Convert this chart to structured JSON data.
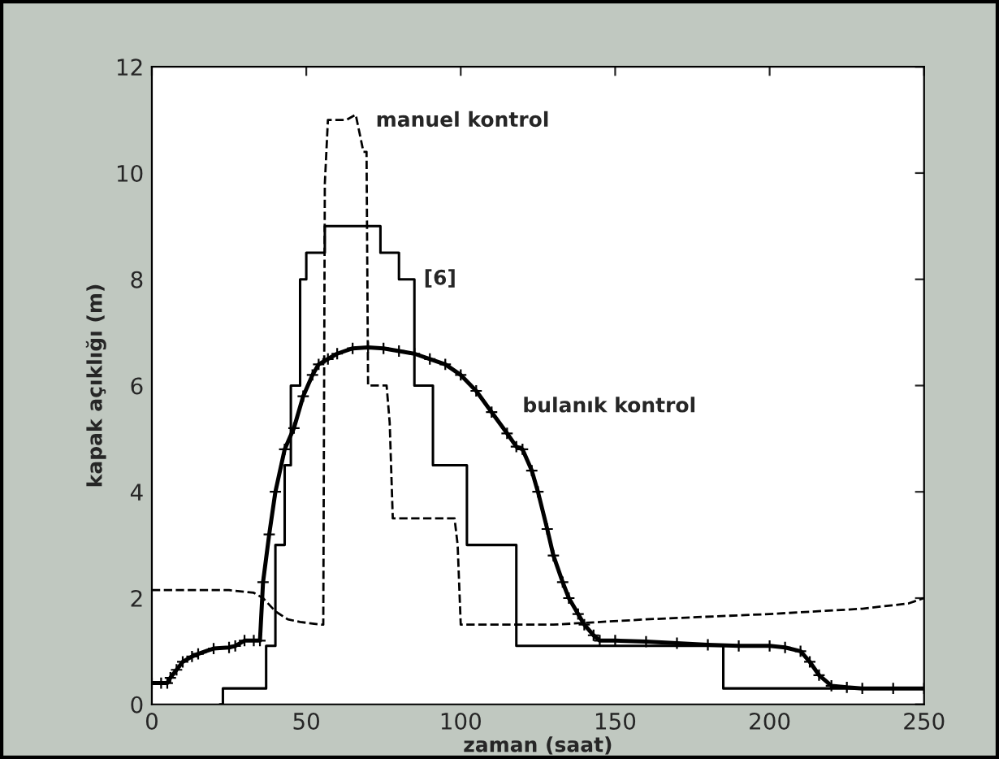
{
  "chart_data": {
    "type": "line",
    "xlabel": "zaman (saat)",
    "ylabel": "kapak açıklığı (m)",
    "xlim": [
      0,
      250
    ],
    "ylim": [
      0,
      12
    ],
    "xticks": [
      0,
      50,
      100,
      150,
      200,
      250
    ],
    "yticks": [
      0,
      2,
      4,
      6,
      8,
      10,
      12
    ],
    "grid": false,
    "series": [
      {
        "type": "step",
        "color": "#000000",
        "line_style": "solid",
        "marker": "none",
        "x": [
          22,
          23,
          37,
          40,
          43,
          45,
          48,
          50,
          56,
          74,
          80,
          85,
          91,
          102,
          118,
          185,
          250
        ],
        "values": [
          0,
          0.3,
          1.1,
          3,
          4.5,
          6,
          8,
          8.5,
          9,
          8.5,
          8,
          6,
          4.5,
          3,
          1.1,
          0.3,
          0.3
        ]
      },
      {
        "color": "#000000",
        "line_style": "dashed",
        "marker": "none",
        "x": [
          0,
          25,
          33,
          36,
          40,
          44,
          48,
          55,
          55.5,
          56,
          57,
          63,
          66,
          68.5,
          69.5,
          70,
          76,
          77,
          78,
          98,
          99,
          100,
          130,
          160,
          200,
          230,
          245,
          250
        ],
        "values": [
          2.15,
          2.15,
          2.1,
          2.0,
          1.75,
          1.6,
          1.55,
          1.5,
          1.5,
          9.8,
          11,
          11,
          11.1,
          10.4,
          10.4,
          6,
          6,
          5.3,
          3.5,
          3.5,
          3,
          1.5,
          1.5,
          1.6,
          1.7,
          1.8,
          1.9,
          2.0
        ]
      },
      {
        "color": "#000000",
        "line_style": "solid",
        "marker": "cross",
        "x": [
          0,
          3,
          5,
          6,
          8,
          10,
          13,
          15,
          20,
          25,
          27,
          30,
          33,
          35,
          36,
          38,
          40,
          43,
          46,
          49,
          52,
          54,
          57,
          60,
          65,
          70,
          75,
          80,
          85,
          90,
          95,
          100,
          105,
          110,
          115,
          118,
          120,
          123,
          125,
          128,
          130,
          133,
          135,
          138,
          140,
          143,
          145,
          150,
          160,
          170,
          180,
          190,
          200,
          205,
          210,
          213,
          216,
          220,
          225,
          230,
          240,
          250
        ],
        "values": [
          0.4,
          0.4,
          0.4,
          0.5,
          0.65,
          0.8,
          0.9,
          0.95,
          1.05,
          1.07,
          1.1,
          1.2,
          1.2,
          1.2,
          2.3,
          3.2,
          4.0,
          4.8,
          5.2,
          5.8,
          6.2,
          6.4,
          6.5,
          6.6,
          6.7,
          6.72,
          6.7,
          6.65,
          6.6,
          6.5,
          6.4,
          6.2,
          5.9,
          5.5,
          5.1,
          4.85,
          4.8,
          4.4,
          4.0,
          3.3,
          2.8,
          2.3,
          2.0,
          1.7,
          1.5,
          1.3,
          1.2,
          1.2,
          1.18,
          1.15,
          1.12,
          1.1,
          1.1,
          1.07,
          1.0,
          0.8,
          0.55,
          0.35,
          0.32,
          0.3,
          0.3,
          0.3
        ]
      }
    ],
    "annotations": [
      "manuel kontrol",
      "[6]",
      "bulanık kontrol"
    ]
  }
}
